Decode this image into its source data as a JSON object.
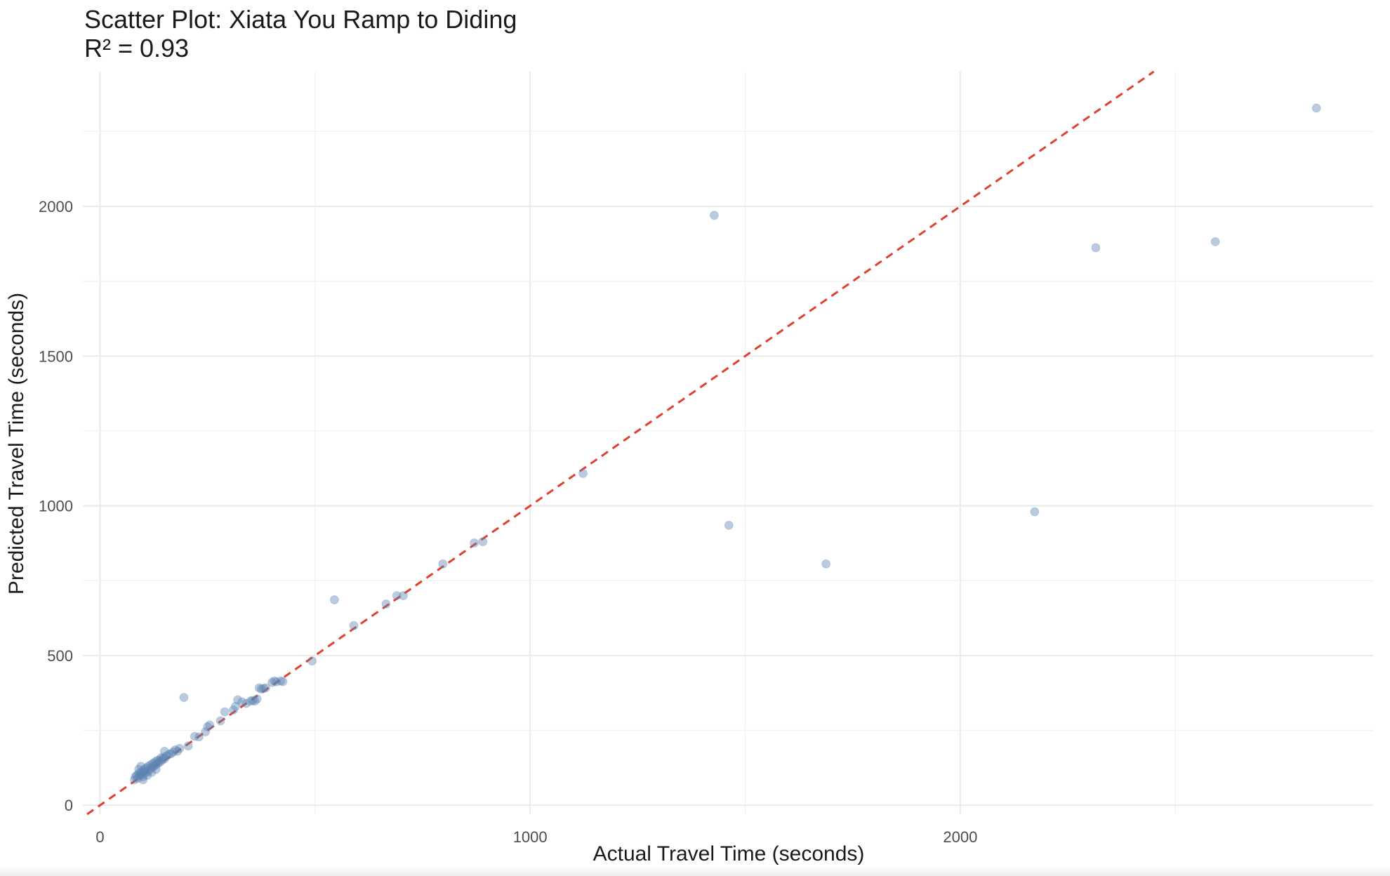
{
  "chart_data": {
    "type": "scatter",
    "title": "Scatter Plot: Xiata You Ramp to Diding",
    "subtitle": "R² = 0.93",
    "xlabel": "Actual Travel Time (seconds)",
    "ylabel": "Predicted Travel Time (seconds)",
    "xlim": [
      -40,
      2960
    ],
    "ylim": [
      -30,
      2450
    ],
    "x_ticks": [
      0,
      1000,
      2000
    ],
    "y_ticks": [
      0,
      500,
      1000,
      1500,
      2000
    ],
    "grid": true,
    "legend": "none",
    "point_color": "#5b82b3",
    "reference_line": {
      "slope": 1,
      "intercept": 0,
      "color": "#e0412f",
      "style": "dashed"
    },
    "points": [
      {
        "x": 80,
        "y": 85
      },
      {
        "x": 82,
        "y": 95
      },
      {
        "x": 85,
        "y": 100
      },
      {
        "x": 88,
        "y": 90
      },
      {
        "x": 90,
        "y": 105
      },
      {
        "x": 92,
        "y": 98
      },
      {
        "x": 95,
        "y": 110
      },
      {
        "x": 97,
        "y": 102
      },
      {
        "x": 100,
        "y": 115
      },
      {
        "x": 100,
        "y": 95
      },
      {
        "x": 103,
        "y": 120
      },
      {
        "x": 105,
        "y": 108
      },
      {
        "x": 108,
        "y": 125
      },
      {
        "x": 110,
        "y": 112
      },
      {
        "x": 112,
        "y": 130
      },
      {
        "x": 115,
        "y": 118
      },
      {
        "x": 118,
        "y": 135
      },
      {
        "x": 120,
        "y": 125
      },
      {
        "x": 123,
        "y": 140
      },
      {
        "x": 125,
        "y": 130
      },
      {
        "x": 128,
        "y": 145
      },
      {
        "x": 130,
        "y": 135
      },
      {
        "x": 133,
        "y": 150
      },
      {
        "x": 135,
        "y": 140
      },
      {
        "x": 138,
        "y": 150
      },
      {
        "x": 140,
        "y": 145
      },
      {
        "x": 142,
        "y": 158
      },
      {
        "x": 145,
        "y": 152
      },
      {
        "x": 148,
        "y": 160
      },
      {
        "x": 150,
        "y": 155
      },
      {
        "x": 155,
        "y": 165
      },
      {
        "x": 160,
        "y": 170
      },
      {
        "x": 165,
        "y": 172
      },
      {
        "x": 170,
        "y": 178
      },
      {
        "x": 175,
        "y": 185
      },
      {
        "x": 180,
        "y": 180
      },
      {
        "x": 185,
        "y": 190
      },
      {
        "x": 150,
        "y": 180
      },
      {
        "x": 95,
        "y": 130
      },
      {
        "x": 90,
        "y": 120
      },
      {
        "x": 100,
        "y": 85
      },
      {
        "x": 110,
        "y": 100
      },
      {
        "x": 120,
        "y": 110
      },
      {
        "x": 130,
        "y": 120
      },
      {
        "x": 195,
        "y": 360
      },
      {
        "x": 205,
        "y": 198
      },
      {
        "x": 220,
        "y": 230
      },
      {
        "x": 230,
        "y": 228
      },
      {
        "x": 245,
        "y": 245
      },
      {
        "x": 250,
        "y": 262
      },
      {
        "x": 255,
        "y": 268
      },
      {
        "x": 280,
        "y": 282
      },
      {
        "x": 290,
        "y": 312
      },
      {
        "x": 310,
        "y": 318
      },
      {
        "x": 315,
        "y": 330
      },
      {
        "x": 320,
        "y": 352
      },
      {
        "x": 330,
        "y": 345
      },
      {
        "x": 340,
        "y": 340
      },
      {
        "x": 350,
        "y": 348
      },
      {
        "x": 355,
        "y": 350
      },
      {
        "x": 360,
        "y": 348
      },
      {
        "x": 365,
        "y": 355
      },
      {
        "x": 370,
        "y": 392
      },
      {
        "x": 375,
        "y": 388
      },
      {
        "x": 380,
        "y": 390
      },
      {
        "x": 385,
        "y": 392
      },
      {
        "x": 400,
        "y": 410
      },
      {
        "x": 405,
        "y": 415
      },
      {
        "x": 410,
        "y": 412
      },
      {
        "x": 420,
        "y": 415
      },
      {
        "x": 425,
        "y": 413
      },
      {
        "x": 493,
        "y": 482
      },
      {
        "x": 545,
        "y": 686
      },
      {
        "x": 590,
        "y": 600
      },
      {
        "x": 665,
        "y": 672
      },
      {
        "x": 690,
        "y": 700
      },
      {
        "x": 705,
        "y": 700
      },
      {
        "x": 797,
        "y": 806
      },
      {
        "x": 870,
        "y": 876
      },
      {
        "x": 890,
        "y": 880
      },
      {
        "x": 1123,
        "y": 1108
      },
      {
        "x": 1428,
        "y": 1970
      },
      {
        "x": 1462,
        "y": 935
      },
      {
        "x": 1688,
        "y": 806
      },
      {
        "x": 2173,
        "y": 980
      },
      {
        "x": 2315,
        "y": 1862
      },
      {
        "x": 2593,
        "y": 1882
      },
      {
        "x": 2828,
        "y": 2328
      }
    ]
  }
}
